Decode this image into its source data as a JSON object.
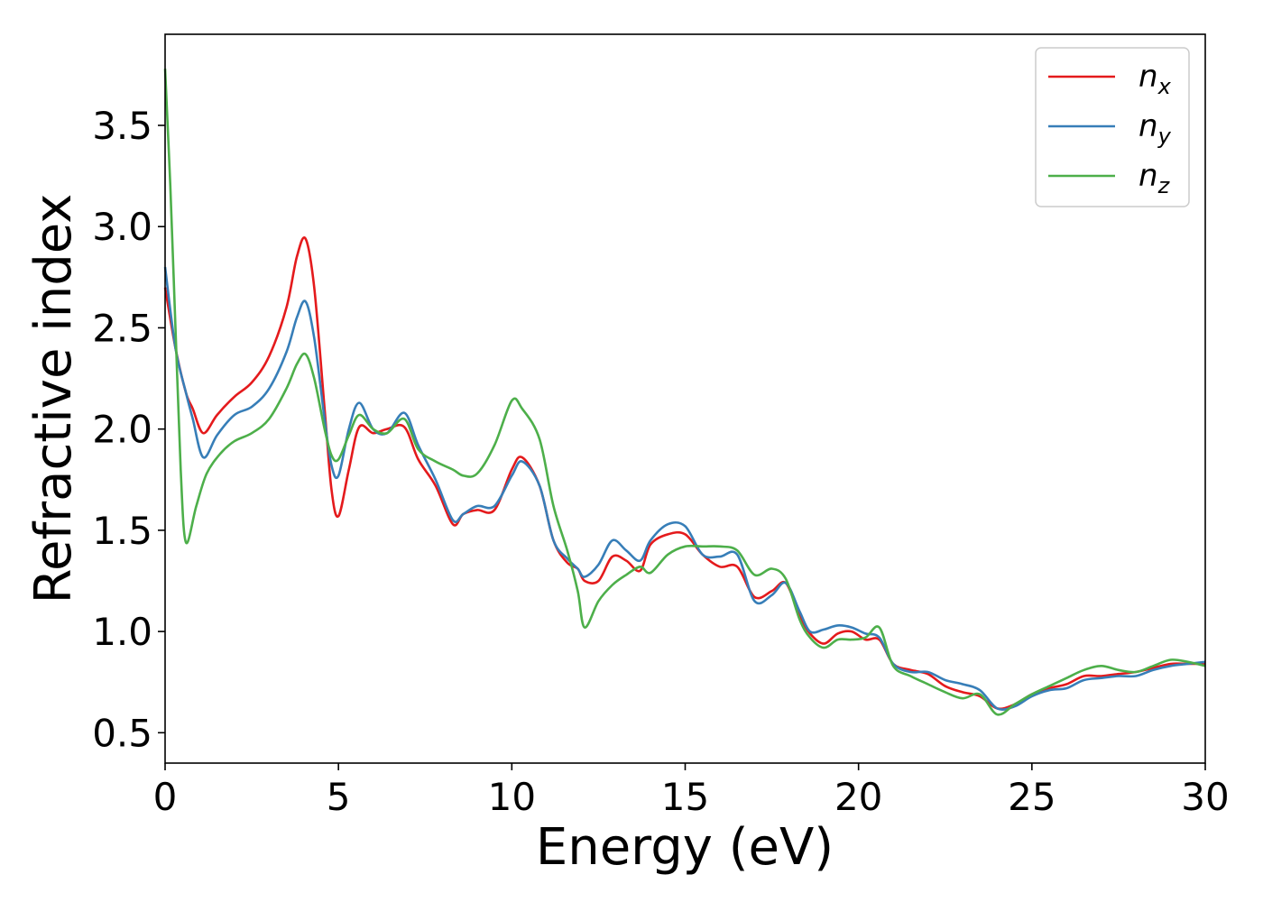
{
  "chart_data": {
    "type": "line",
    "title": "",
    "xlabel": "Energy (eV)",
    "ylabel": "Refractive index",
    "xlim": [
      0,
      30
    ],
    "ylim": [
      0.35,
      3.95
    ],
    "xticks": [
      0,
      5,
      10,
      15,
      20,
      25,
      30
    ],
    "xtick_labels": [
      "0",
      "5",
      "10",
      "15",
      "20",
      "25",
      "30"
    ],
    "yticks": [
      0.5,
      1.0,
      1.5,
      2.0,
      2.5,
      3.0,
      3.5
    ],
    "ytick_labels": [
      "0.5",
      "1.0",
      "1.5",
      "2.0",
      "2.5",
      "3.0",
      "3.5"
    ],
    "grid": false,
    "legend_position": "top-right",
    "series": [
      {
        "name": "n",
        "subscript": "x",
        "color": "#e41a1c",
        "x": [
          0,
          0.3,
          0.6,
          0.8,
          1.1,
          1.5,
          2.0,
          2.5,
          3.0,
          3.5,
          3.8,
          4.05,
          4.3,
          4.6,
          4.8,
          5.0,
          5.3,
          5.6,
          6.0,
          6.4,
          6.9,
          7.3,
          7.8,
          8.3,
          8.6,
          9.0,
          9.5,
          10.0,
          10.3,
          10.8,
          11.2,
          11.6,
          11.9,
          12.1,
          12.5,
          12.9,
          13.3,
          13.7,
          14.0,
          14.5,
          15.0,
          15.5,
          16.0,
          16.5,
          17.0,
          17.5,
          17.9,
          18.3,
          18.6,
          19.0,
          19.4,
          19.8,
          20.2,
          20.6,
          21.0,
          21.5,
          22.0,
          22.5,
          23.0,
          23.5,
          24.0,
          24.5,
          25.0,
          25.5,
          26.0,
          26.5,
          27.0,
          27.5,
          28.0,
          28.5,
          29.0,
          29.5,
          30.0
        ],
        "y": [
          2.7,
          2.4,
          2.18,
          2.1,
          1.98,
          2.07,
          2.16,
          2.23,
          2.36,
          2.6,
          2.85,
          2.94,
          2.7,
          2.1,
          1.7,
          1.57,
          1.8,
          2.01,
          1.98,
          2.0,
          2.01,
          1.85,
          1.72,
          1.53,
          1.58,
          1.6,
          1.6,
          1.8,
          1.86,
          1.72,
          1.45,
          1.34,
          1.31,
          1.25,
          1.25,
          1.37,
          1.35,
          1.3,
          1.43,
          1.48,
          1.48,
          1.38,
          1.32,
          1.32,
          1.17,
          1.2,
          1.24,
          1.08,
          0.99,
          0.94,
          0.99,
          1.0,
          0.96,
          0.96,
          0.84,
          0.81,
          0.79,
          0.73,
          0.7,
          0.68,
          0.62,
          0.64,
          0.69,
          0.72,
          0.74,
          0.78,
          0.78,
          0.79,
          0.8,
          0.82,
          0.84,
          0.84,
          0.84
        ]
      },
      {
        "name": "n",
        "subscript": "y",
        "color": "#377eb8",
        "x": [
          0,
          0.3,
          0.6,
          0.8,
          1.1,
          1.5,
          2.0,
          2.5,
          3.0,
          3.5,
          3.8,
          4.05,
          4.3,
          4.6,
          4.8,
          5.0,
          5.3,
          5.6,
          6.0,
          6.4,
          6.9,
          7.3,
          7.8,
          8.3,
          8.6,
          9.0,
          9.5,
          10.0,
          10.3,
          10.8,
          11.2,
          11.6,
          11.9,
          12.1,
          12.5,
          12.9,
          13.3,
          13.7,
          14.0,
          14.5,
          15.0,
          15.5,
          16.0,
          16.5,
          17.0,
          17.5,
          17.9,
          18.3,
          18.6,
          19.0,
          19.4,
          19.8,
          20.2,
          20.6,
          21.0,
          21.5,
          22.0,
          22.5,
          23.0,
          23.5,
          24.0,
          24.5,
          25.0,
          25.5,
          26.0,
          26.5,
          27.0,
          27.5,
          28.0,
          28.5,
          29.0,
          29.5,
          30.0
        ],
        "y": [
          2.8,
          2.4,
          2.18,
          2.05,
          1.86,
          1.97,
          2.07,
          2.11,
          2.2,
          2.38,
          2.55,
          2.63,
          2.45,
          2.05,
          1.82,
          1.77,
          2.0,
          2.13,
          2.0,
          1.98,
          2.08,
          1.92,
          1.75,
          1.55,
          1.58,
          1.62,
          1.62,
          1.77,
          1.84,
          1.72,
          1.45,
          1.36,
          1.31,
          1.27,
          1.33,
          1.45,
          1.4,
          1.35,
          1.45,
          1.53,
          1.52,
          1.38,
          1.37,
          1.38,
          1.15,
          1.18,
          1.24,
          1.1,
          1.0,
          1.01,
          1.03,
          1.02,
          0.99,
          0.97,
          0.84,
          0.8,
          0.8,
          0.76,
          0.74,
          0.71,
          0.62,
          0.63,
          0.68,
          0.71,
          0.72,
          0.76,
          0.77,
          0.78,
          0.78,
          0.81,
          0.83,
          0.84,
          0.85
        ]
      },
      {
        "name": "n",
        "subscript": "z",
        "color": "#4daf4a",
        "x": [
          0,
          0.15,
          0.3,
          0.45,
          0.6,
          0.9,
          1.2,
          1.6,
          2.0,
          2.5,
          3.0,
          3.5,
          3.8,
          4.05,
          4.3,
          4.6,
          4.8,
          5.0,
          5.3,
          5.6,
          6.0,
          6.4,
          6.9,
          7.3,
          7.8,
          8.3,
          8.6,
          9.0,
          9.5,
          10.0,
          10.3,
          10.8,
          11.2,
          11.6,
          11.9,
          12.1,
          12.5,
          12.9,
          13.3,
          13.7,
          14.0,
          14.5,
          15.0,
          15.5,
          16.0,
          16.5,
          17.0,
          17.5,
          17.9,
          18.3,
          18.6,
          19.0,
          19.4,
          19.8,
          20.2,
          20.6,
          21.0,
          21.5,
          22.0,
          22.5,
          23.0,
          23.5,
          24.0,
          24.5,
          25.0,
          25.5,
          26.0,
          26.5,
          27.0,
          27.5,
          28.0,
          28.5,
          29.0,
          29.5,
          30.0
        ],
        "y": [
          3.78,
          3.2,
          2.5,
          1.8,
          1.44,
          1.62,
          1.78,
          1.88,
          1.94,
          1.98,
          2.05,
          2.2,
          2.32,
          2.37,
          2.25,
          2.0,
          1.87,
          1.85,
          1.97,
          2.07,
          2.0,
          1.98,
          2.05,
          1.9,
          1.84,
          1.8,
          1.77,
          1.78,
          1.92,
          2.14,
          2.1,
          1.95,
          1.62,
          1.4,
          1.2,
          1.02,
          1.15,
          1.23,
          1.28,
          1.32,
          1.29,
          1.38,
          1.42,
          1.42,
          1.42,
          1.4,
          1.28,
          1.31,
          1.26,
          1.06,
          0.97,
          0.92,
          0.96,
          0.96,
          0.97,
          1.02,
          0.83,
          0.78,
          0.74,
          0.7,
          0.67,
          0.69,
          0.59,
          0.64,
          0.69,
          0.73,
          0.77,
          0.81,
          0.83,
          0.81,
          0.8,
          0.83,
          0.86,
          0.85,
          0.83
        ]
      }
    ]
  }
}
